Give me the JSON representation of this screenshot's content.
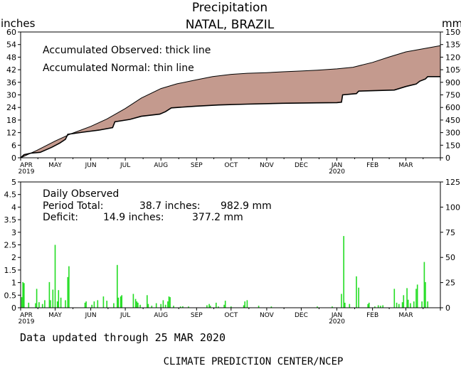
{
  "header": {
    "title": "Precipitation",
    "location": "NATAL, BRAZIL",
    "unit_left": "inches",
    "unit_right": "mm"
  },
  "top_panel": {
    "legend_observed": "Accumulated Observed: thick line",
    "legend_normal": "Accumulated Normal: thin line"
  },
  "bottom_panel": {
    "label_daily": "Daily Observed",
    "period_total_label": "Period Total:",
    "period_total_inches": "38.7 inches:",
    "period_total_mm": "982.9 mm",
    "deficit_label": "Deficit:",
    "deficit_inches": "14.9 inches:",
    "deficit_mm": "377.2 mm"
  },
  "footer": {
    "updated": "Data updated through 25 MAR 2020",
    "credit": "CLIMATE PREDICTION CENTER/NCEP"
  },
  "colors": {
    "fill_deficit": "#c49a8e",
    "daily_bar": "#22dd22",
    "line": "#000000"
  },
  "chart_data": [
    {
      "type": "area",
      "title": "Precipitation",
      "subtitle": "NATAL, BRAZIL",
      "xlabel": "",
      "ylabel": "inches",
      "ylabel_right": "mm",
      "ylim": [
        0,
        60
      ],
      "ylim_right": [
        0,
        1500
      ],
      "yticks": [
        0,
        6,
        12,
        18,
        24,
        30,
        36,
        42,
        48,
        54,
        60
      ],
      "yticks_right": [
        0,
        150,
        300,
        450,
        600,
        750,
        900,
        1050,
        1200,
        1350,
        1500
      ],
      "x_start": "2019-04-01",
      "x_end": "2020-03-31",
      "month_ticks": [
        "APR",
        "MAY",
        "JUN",
        "JUL",
        "AUG",
        "SEP",
        "OCT",
        "NOV",
        "DEC",
        "JAN",
        "FEB",
        "MAR"
      ],
      "year_ticks": [
        {
          "month": "APR",
          "year": "2019"
        },
        {
          "month": "JAN",
          "year": "2020"
        }
      ],
      "series": [
        {
          "name": "Accumulated Normal",
          "style": "thin",
          "points": [
            [
              "2019-04-01",
              0
            ],
            [
              "2019-04-15",
              3.5
            ],
            [
              "2019-05-01",
              8
            ],
            [
              "2019-05-15",
              11.5
            ],
            [
              "2019-06-01",
              15
            ],
            [
              "2019-06-15",
              18.5
            ],
            [
              "2019-07-01",
              23.5
            ],
            [
              "2019-07-15",
              28.5
            ],
            [
              "2019-08-01",
              33
            ],
            [
              "2019-08-15",
              35.3
            ],
            [
              "2019-09-01",
              37.2
            ],
            [
              "2019-09-15",
              38.7
            ],
            [
              "2019-10-01",
              39.8
            ],
            [
              "2019-10-15",
              40.3
            ],
            [
              "2019-11-01",
              40.6
            ],
            [
              "2019-11-15",
              41
            ],
            [
              "2019-12-01",
              41.4
            ],
            [
              "2019-12-15",
              41.8
            ],
            [
              "2020-01-01",
              42.4
            ],
            [
              "2020-01-15",
              43.2
            ],
            [
              "2020-02-01",
              45.5
            ],
            [
              "2020-02-15",
              48
            ],
            [
              "2020-03-01",
              50.5
            ],
            [
              "2020-03-31",
              53.5
            ]
          ]
        },
        {
          "name": "Accumulated Observed",
          "style": "thick",
          "points": [
            [
              "2019-04-01",
              0
            ],
            [
              "2019-04-04",
              1.5
            ],
            [
              "2019-04-10",
              2.2
            ],
            [
              "2019-04-18",
              2.6
            ],
            [
              "2019-04-28",
              5
            ],
            [
              "2019-05-05",
              7
            ],
            [
              "2019-05-10",
              8.8
            ],
            [
              "2019-05-12",
              11.2
            ],
            [
              "2019-05-25",
              12.2
            ],
            [
              "2019-06-08",
              13.2
            ],
            [
              "2019-06-20",
              14.4
            ],
            [
              "2019-06-22",
              17.2
            ],
            [
              "2019-07-05",
              18.3
            ],
            [
              "2019-07-15",
              19.8
            ],
            [
              "2019-07-31",
              20.8
            ],
            [
              "2019-08-05",
              22
            ],
            [
              "2019-08-10",
              23.8
            ],
            [
              "2019-08-31",
              24.6
            ],
            [
              "2019-09-20",
              25.2
            ],
            [
              "2019-10-15",
              25.6
            ],
            [
              "2019-11-15",
              26
            ],
            [
              "2019-12-15",
              26.2
            ],
            [
              "2020-01-01",
              26.3
            ],
            [
              "2020-01-05",
              26.5
            ],
            [
              "2020-01-06",
              30
            ],
            [
              "2020-01-18",
              30.6
            ],
            [
              "2020-01-20",
              31.8
            ],
            [
              "2020-02-20",
              32.3
            ],
            [
              "2020-03-01",
              34
            ],
            [
              "2020-03-10",
              35.2
            ],
            [
              "2020-03-13",
              36.5
            ],
            [
              "2020-03-18",
              37.6
            ],
            [
              "2020-03-20",
              38.7
            ],
            [
              "2020-03-31",
              38.7
            ]
          ]
        }
      ]
    },
    {
      "type": "bar",
      "title": "Daily Observed",
      "ylabel": "inches",
      "ylabel_right": "mm",
      "ylim": [
        0,
        5
      ],
      "ylim_right": [
        0,
        125
      ],
      "yticks": [
        0,
        0.5,
        1,
        1.5,
        2,
        2.5,
        3,
        3.5,
        4,
        4.5,
        5
      ],
      "ytick_labels": [
        "0",
        "0.5",
        "1",
        "1.5",
        "2",
        "2.5",
        "3",
        "3.5",
        "4",
        "4.5",
        "5"
      ],
      "yticks_right": [
        0,
        25,
        50,
        75,
        100,
        125
      ],
      "series": [
        {
          "points": [
            [
              "2019-04-02",
              0.42
            ],
            [
              "2019-04-03",
              1.02
            ],
            [
              "2019-04-04",
              0.98
            ],
            [
              "2019-04-08",
              0.2
            ],
            [
              "2019-04-14",
              0.18
            ],
            [
              "2019-04-15",
              0.75
            ],
            [
              "2019-04-17",
              0.22
            ],
            [
              "2019-04-20",
              0.15
            ],
            [
              "2019-04-22",
              0.3
            ],
            [
              "2019-04-26",
              1.02
            ],
            [
              "2019-04-27",
              0.3
            ],
            [
              "2019-04-29",
              0.72
            ],
            [
              "2019-05-01",
              2.5
            ],
            [
              "2019-05-03",
              0.25
            ],
            [
              "2019-05-04",
              0.7
            ],
            [
              "2019-05-06",
              0.4
            ],
            [
              "2019-05-10",
              0.3
            ],
            [
              "2019-05-12",
              1.22
            ],
            [
              "2019-05-13",
              1.65
            ],
            [
              "2019-05-27",
              0.2
            ],
            [
              "2019-05-28",
              0.25
            ],
            [
              "2019-06-02",
              0.12
            ],
            [
              "2019-06-04",
              0.25
            ],
            [
              "2019-06-07",
              0.3
            ],
            [
              "2019-06-12",
              0.45
            ],
            [
              "2019-06-15",
              0.28
            ],
            [
              "2019-06-21",
              0.18
            ],
            [
              "2019-06-24",
              1.7
            ],
            [
              "2019-06-25",
              0.4
            ],
            [
              "2019-06-27",
              0.45
            ],
            [
              "2019-06-28",
              0.5
            ],
            [
              "2019-07-08",
              0.55
            ],
            [
              "2019-07-10",
              0.35
            ],
            [
              "2019-07-11",
              0.25
            ],
            [
              "2019-07-12",
              0.2
            ],
            [
              "2019-07-14",
              0.12
            ],
            [
              "2019-07-20",
              0.5
            ],
            [
              "2019-07-21",
              0.15
            ],
            [
              "2019-07-24",
              0.08
            ],
            [
              "2019-07-28",
              0.18
            ],
            [
              "2019-08-01",
              0.15
            ],
            [
              "2019-08-03",
              0.3
            ],
            [
              "2019-08-05",
              0.12
            ],
            [
              "2019-08-07",
              0.25
            ],
            [
              "2019-08-08",
              0.45
            ],
            [
              "2019-08-09",
              0.42
            ],
            [
              "2019-08-12",
              0.08
            ],
            [
              "2019-08-18",
              0.05
            ],
            [
              "2019-08-20",
              0.06
            ],
            [
              "2019-08-25",
              0.05
            ],
            [
              "2019-09-10",
              0.1
            ],
            [
              "2019-09-12",
              0.15
            ],
            [
              "2019-09-13",
              0.08
            ],
            [
              "2019-09-18",
              0.2
            ],
            [
              "2019-09-20",
              0.05
            ],
            [
              "2019-09-25",
              0.12
            ],
            [
              "2019-09-26",
              0.28
            ],
            [
              "2019-10-01",
              0.05
            ],
            [
              "2019-10-12",
              0.1
            ],
            [
              "2019-10-13",
              0.25
            ],
            [
              "2019-10-15",
              0.3
            ],
            [
              "2019-10-25",
              0.08
            ],
            [
              "2019-11-05",
              0.05
            ],
            [
              "2019-12-15",
              0.05
            ],
            [
              "2019-12-28",
              0.05
            ],
            [
              "2020-01-05",
              0.55
            ],
            [
              "2020-01-07",
              2.85
            ],
            [
              "2020-01-08",
              0.2
            ],
            [
              "2020-01-12",
              0.15
            ],
            [
              "2020-01-18",
              1.25
            ],
            [
              "2020-01-20",
              0.8
            ],
            [
              "2020-01-28",
              0.15
            ],
            [
              "2020-01-29",
              0.2
            ],
            [
              "2020-02-03",
              0.05
            ],
            [
              "2020-02-06",
              0.1
            ],
            [
              "2020-02-08",
              0.08
            ],
            [
              "2020-02-10",
              0.1
            ],
            [
              "2020-02-20",
              0.75
            ],
            [
              "2020-02-22",
              0.2
            ],
            [
              "2020-02-24",
              0.15
            ],
            [
              "2020-02-27",
              0.22
            ],
            [
              "2020-02-28",
              0.5
            ],
            [
              "2020-03-02",
              0.78
            ],
            [
              "2020-03-03",
              0.32
            ],
            [
              "2020-03-05",
              0.18
            ],
            [
              "2020-03-08",
              0.25
            ],
            [
              "2020-03-10",
              0.75
            ],
            [
              "2020-03-11",
              0.92
            ],
            [
              "2020-03-15",
              0.25
            ],
            [
              "2020-03-17",
              1.82
            ],
            [
              "2020-03-18",
              1.02
            ],
            [
              "2020-03-20",
              0.25
            ]
          ]
        }
      ]
    }
  ]
}
